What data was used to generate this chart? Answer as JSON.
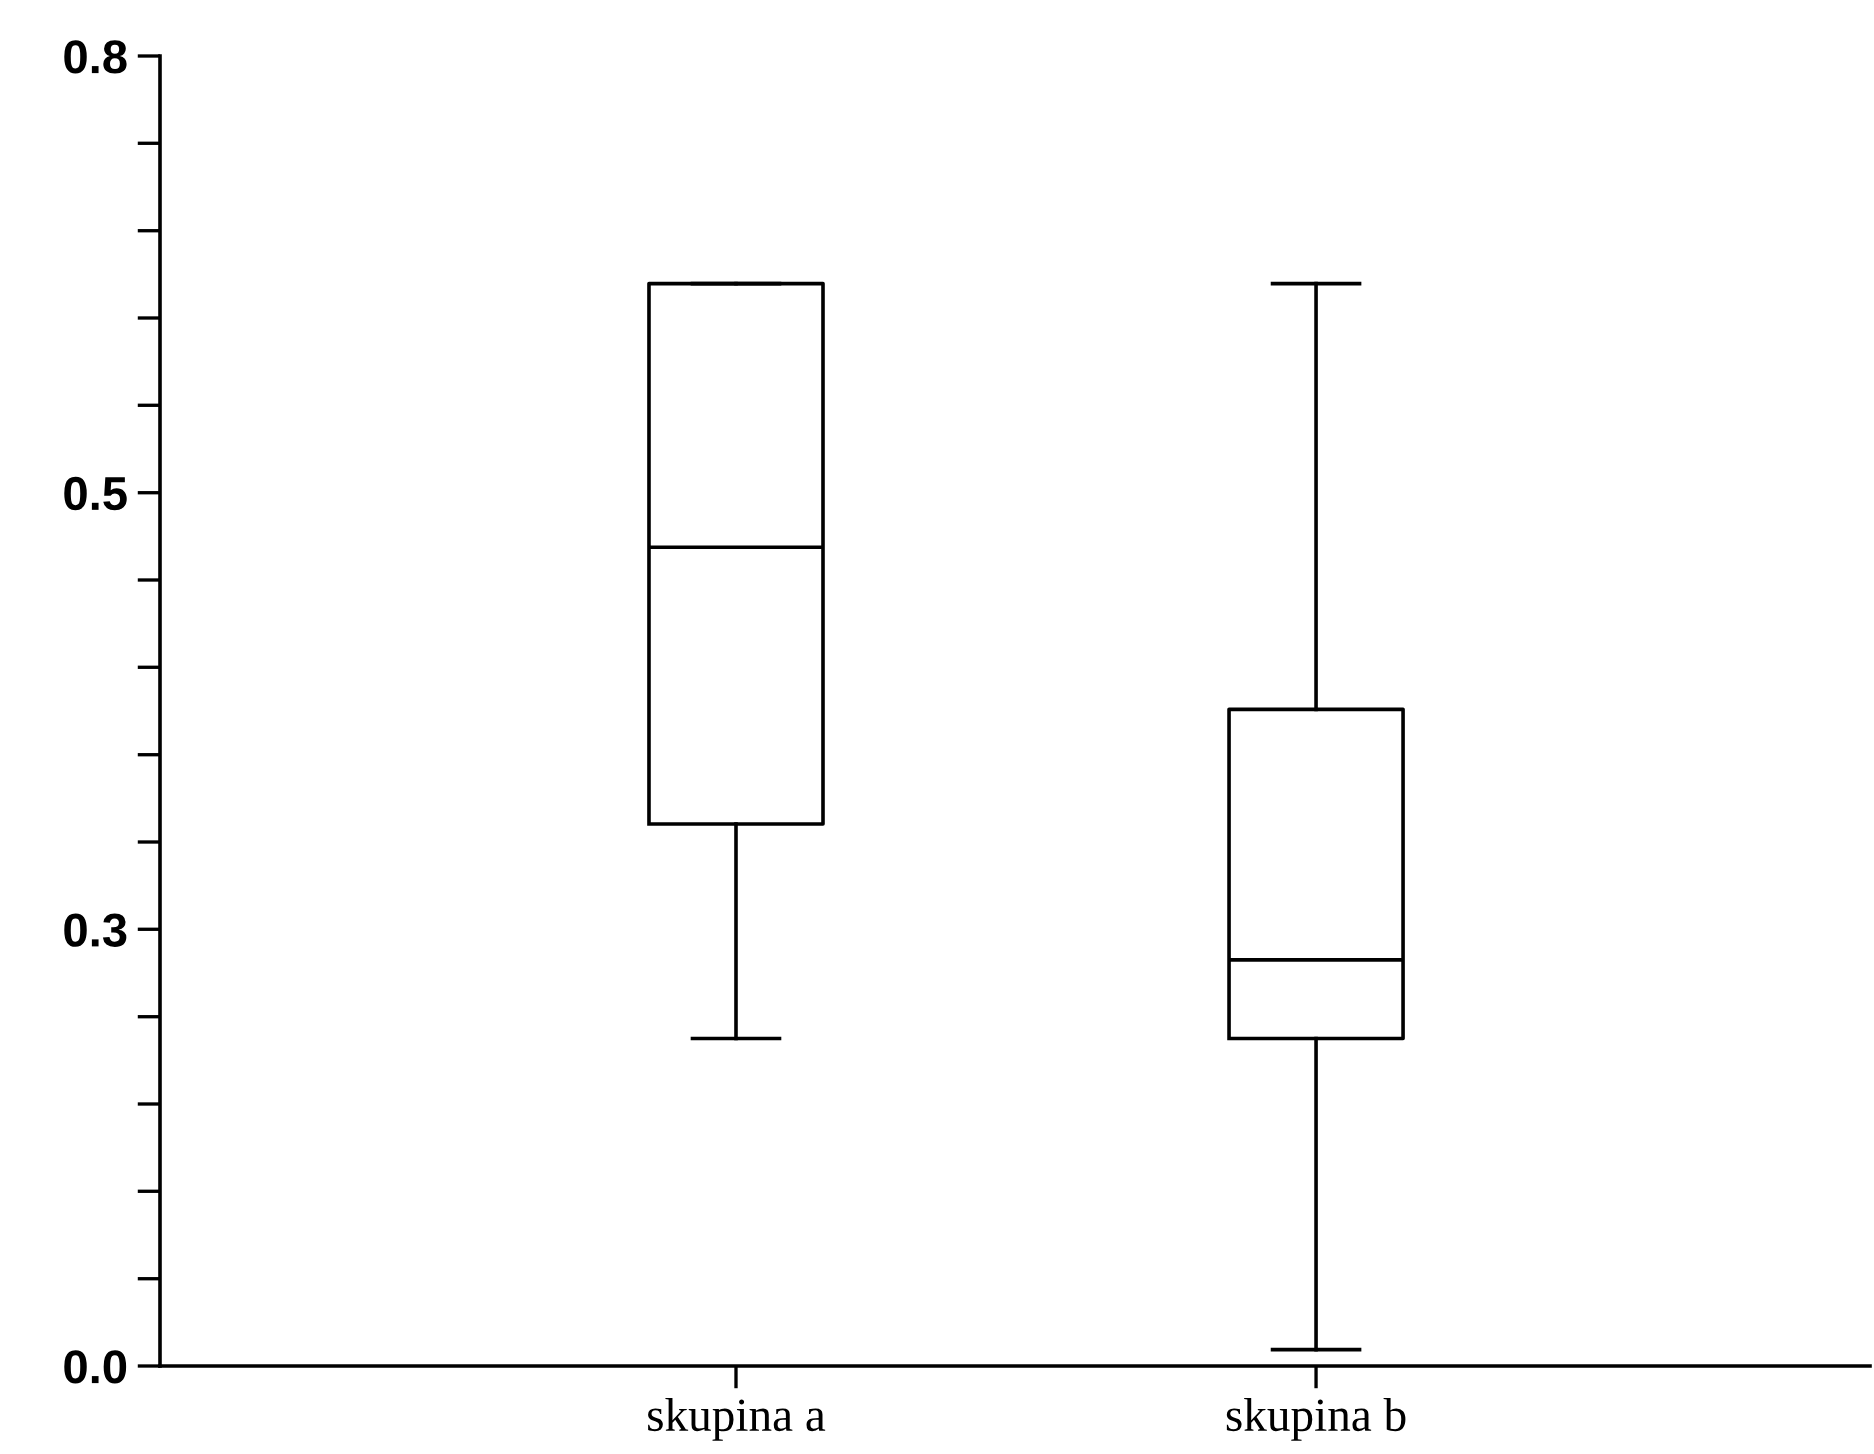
{
  "chart_data": {
    "type": "box",
    "categories": [
      "skupina a",
      "skupina b"
    ],
    "boxes": [
      {
        "low": 0.2,
        "q1": 0.331,
        "median": 0.5,
        "q3": 0.661,
        "high": 0.661
      },
      {
        "low": 0.01,
        "q1": 0.2,
        "median": 0.248,
        "q3": 0.401,
        "high": 0.661
      }
    ],
    "color": "#000000",
    "ylim": [
      0,
      0.8
    ],
    "yticks": [
      {
        "value": 0,
        "label": "0.0"
      },
      {
        "value": 0.0533,
        "label": null
      },
      {
        "value": 0.1067,
        "label": null
      },
      {
        "value": 0.16,
        "label": null
      },
      {
        "value": 0.2133,
        "label": null
      },
      {
        "value": 0.2667,
        "label": "0.3"
      },
      {
        "value": 0.32,
        "label": null
      },
      {
        "value": 0.3733,
        "label": null
      },
      {
        "value": 0.4267,
        "label": null
      },
      {
        "value": 0.48,
        "label": null
      },
      {
        "value": 0.5333,
        "label": "0.5"
      },
      {
        "value": 0.5867,
        "label": null
      },
      {
        "value": 0.64,
        "label": null
      },
      {
        "value": 0.6933,
        "label": null
      },
      {
        "value": 0.7467,
        "label": null
      },
      0.8
    ],
    "grid": false
  }
}
